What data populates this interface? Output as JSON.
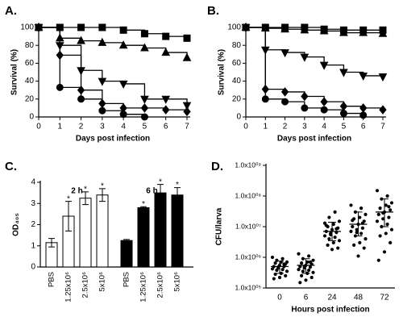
{
  "chart_data": [
    {
      "type": "survival",
      "panel_label": "A.",
      "xlabel": "Days post infection",
      "ylabel": "Survival (%)",
      "x": [
        0,
        1,
        2,
        3,
        4,
        5,
        6,
        7
      ],
      "xlim": [
        0,
        7
      ],
      "xticks": [
        0,
        1,
        2,
        3,
        4,
        5,
        6,
        7
      ],
      "ylim": [
        0,
        100
      ],
      "yticks": [
        0,
        20,
        40,
        60,
        80,
        100
      ],
      "series": [
        {
          "marker": "square",
          "color": "#000000",
          "values": [
            100,
            100,
            100,
            100,
            97,
            93,
            90,
            88
          ]
        },
        {
          "marker": "triangle-up",
          "color": "#000000",
          "values": [
            100,
            88,
            85,
            83,
            80,
            77,
            72,
            66
          ]
        },
        {
          "marker": "triangle-down",
          "color": "#000000",
          "values": [
            100,
            80,
            52,
            40,
            37,
            20,
            20,
            13
          ]
        },
        {
          "marker": "diamond",
          "color": "#000000",
          "values": [
            100,
            69,
            30,
            15,
            10,
            10,
            8,
            6
          ]
        },
        {
          "marker": "circle",
          "color": "#000000",
          "values": [
            100,
            33,
            20,
            7,
            3,
            0,
            null,
            null
          ]
        }
      ]
    },
    {
      "type": "survival",
      "panel_label": "B.",
      "xlabel": "Days post infection",
      "ylabel": "Survival (%)",
      "x": [
        0,
        1,
        2,
        3,
        4,
        5,
        6,
        7
      ],
      "xlim": [
        0,
        7
      ],
      "xticks": [
        0,
        1,
        2,
        3,
        4,
        5,
        6,
        7
      ],
      "ylim": [
        0,
        100
      ],
      "yticks": [
        0,
        20,
        40,
        60,
        80,
        100
      ],
      "series": [
        {
          "marker": "square",
          "color": "#000000",
          "values": [
            100,
            100,
            100,
            100,
            98,
            97,
            97,
            97
          ]
        },
        {
          "marker": "triangle-up",
          "color": "#000000",
          "values": [
            100,
            99,
            98,
            97,
            96,
            94,
            94,
            93
          ]
        },
        {
          "marker": "triangle-down",
          "color": "#000000",
          "values": [
            100,
            75,
            72,
            67,
            58,
            50,
            46,
            45
          ]
        },
        {
          "marker": "diamond",
          "color": "#000000",
          "values": [
            100,
            31,
            28,
            23,
            17,
            12,
            10,
            8
          ]
        },
        {
          "marker": "circle",
          "color": "#000000",
          "values": [
            100,
            20,
            17,
            10,
            8,
            4,
            2,
            null
          ]
        }
      ]
    },
    {
      "type": "bar_error",
      "panel_label": "C.",
      "ylabel": "OD₄₀₅",
      "ylim": [
        0,
        4
      ],
      "yticks": [
        0,
        1,
        2,
        3,
        4
      ],
      "groups": [
        {
          "name": "2 h",
          "color": "#ffffff",
          "categories": [
            "PBS",
            "1.25x10⁶",
            "2.5x10⁶",
            "5x10⁶"
          ],
          "values": [
            1.15,
            2.4,
            3.25,
            3.4
          ],
          "errors": [
            0.2,
            0.7,
            0.3,
            0.3
          ],
          "annotations": [
            null,
            "*",
            "*",
            "*"
          ]
        },
        {
          "name": "6 h",
          "color": "#000000",
          "categories": [
            "PBS",
            "1.25x10⁶",
            "2.5x10⁶",
            "5x10⁶"
          ],
          "values": [
            1.25,
            2.8,
            3.5,
            3.4
          ],
          "errors": [
            0.05,
            0.05,
            0.4,
            0.35
          ],
          "annotations": [
            null,
            "*",
            "*",
            "*"
          ]
        }
      ]
    },
    {
      "type": "dot_log",
      "panel_label": "D.",
      "xlabel": "Hours post infection",
      "ylabel": "CFU/larva",
      "log_y": true,
      "ylim": [
        100000,
        1000000000
      ],
      "yticks": [
        {
          "value": 100000,
          "label": "1.0x10⁰⁵"
        },
        {
          "value": 1000000,
          "label": "1.0x10⁰⁶"
        },
        {
          "value": 10000000,
          "label": "1.0x10⁰⁷"
        },
        {
          "value": 100000000,
          "label": "1.0x10⁰⁸"
        },
        {
          "value": 1000000000,
          "label": "1.0x10⁰⁹"
        }
      ],
      "categories": [
        "0",
        "6",
        "24",
        "48",
        "72"
      ],
      "color": "#000000",
      "points": [
        [
          1000000,
          900000,
          800000,
          700000,
          700000,
          650000,
          600000,
          550000,
          500000,
          500000,
          450000,
          420000,
          400000,
          380000,
          350000,
          300000,
          280000,
          250000,
          220000,
          200000,
          600000,
          480000
        ],
        [
          1300000,
          1100000,
          900000,
          800000,
          700000,
          650000,
          600000,
          550000,
          500000,
          480000,
          450000,
          400000,
          380000,
          350000,
          320000,
          300000,
          250000,
          220000,
          180000,
          150000,
          700000,
          500000
        ],
        [
          13000000,
          30000000,
          20000000,
          15000000,
          12000000,
          10000000,
          9000000,
          8000000,
          7000000,
          6500000,
          6000000,
          5000000,
          4500000,
          4000000,
          3500000,
          3000000,
          2500000,
          2000000,
          1800000,
          11000000,
          8500000,
          5500000
        ],
        [
          50000000,
          40000000,
          30000000,
          25000000,
          20000000,
          18000000,
          15000000,
          12000000,
          10000000,
          9000000,
          8000000,
          7000000,
          6000000,
          5000000,
          4000000,
          3000000,
          2500000,
          2000000,
          1100000,
          16000000,
          13000000,
          6500000
        ],
        [
          150000000,
          100000000,
          80000000,
          60000000,
          50000000,
          40000000,
          35000000,
          30000000,
          25000000,
          20000000,
          18000000,
          15000000,
          12000000,
          10000000,
          8000000,
          6000000,
          5000000,
          3000000,
          1500000,
          800000,
          45000000,
          28000000
        ]
      ],
      "means": [
        500000,
        550000,
        7000000,
        12000000,
        30000000
      ],
      "sd_low": [
        300000,
        300000,
        3500000,
        5000000,
        10000000
      ],
      "sd_high": [
        750000,
        900000,
        14000000,
        30000000,
        80000000
      ]
    }
  ]
}
